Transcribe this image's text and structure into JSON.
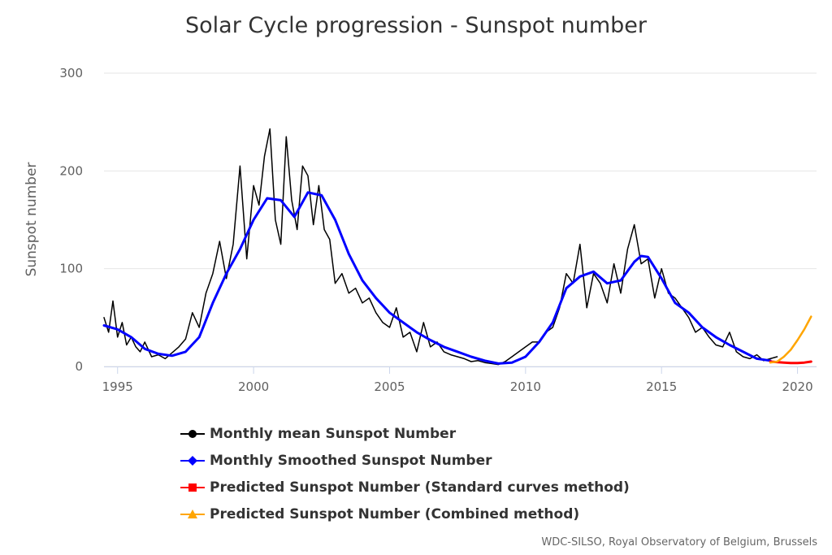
{
  "chart_data": {
    "type": "line",
    "title": "Solar Cycle progression - Sunspot number",
    "ylabel": "Sunspot number",
    "xlabel": "",
    "xlim": [
      1994.5,
      2020.7
    ],
    "ylim": [
      0,
      300
    ],
    "x_ticks": [
      1995,
      2000,
      2005,
      2010,
      2015,
      2020
    ],
    "y_ticks": [
      0,
      100,
      200,
      300
    ],
    "grid": "horizontal",
    "legend_position": "bottom",
    "credits": "WDC-SILSO, Royal Observatory of Belgium, Brussels",
    "series": [
      {
        "name": "Monthly mean Sunspot Number",
        "color": "#000000",
        "marker": "circle",
        "x": [
          1994.5,
          1994.67,
          1994.83,
          1995.0,
          1995.17,
          1995.33,
          1995.5,
          1995.67,
          1995.83,
          1996.0,
          1996.25,
          1996.5,
          1996.75,
          1997.0,
          1997.25,
          1997.5,
          1997.75,
          1998.0,
          1998.25,
          1998.5,
          1998.75,
          1999.0,
          1999.25,
          1999.5,
          1999.75,
          2000.0,
          2000.2,
          2000.4,
          2000.6,
          2000.8,
          2001.0,
          2001.2,
          2001.4,
          2001.6,
          2001.8,
          2002.0,
          2002.2,
          2002.4,
          2002.6,
          2002.8,
          2003.0,
          2003.25,
          2003.5,
          2003.75,
          2004.0,
          2004.25,
          2004.5,
          2004.75,
          2005.0,
          2005.25,
          2005.5,
          2005.75,
          2006.0,
          2006.25,
          2006.5,
          2006.75,
          2007.0,
          2007.25,
          2007.5,
          2007.75,
          2008.0,
          2008.25,
          2008.5,
          2008.75,
          2009.0,
          2009.25,
          2009.5,
          2009.75,
          2010.0,
          2010.25,
          2010.5,
          2010.75,
          2011.0,
          2011.25,
          2011.5,
          2011.75,
          2012.0,
          2012.25,
          2012.5,
          2012.75,
          2013.0,
          2013.25,
          2013.5,
          2013.75,
          2014.0,
          2014.25,
          2014.5,
          2014.75,
          2015.0,
          2015.25,
          2015.5,
          2015.75,
          2016.0,
          2016.25,
          2016.5,
          2016.75,
          2017.0,
          2017.25,
          2017.5,
          2017.75,
          2018.0,
          2018.25,
          2018.5,
          2018.75,
          2019.0,
          2019.25
        ],
        "values": [
          50,
          35,
          67,
          30,
          45,
          22,
          30,
          20,
          15,
          25,
          10,
          12,
          8,
          14,
          20,
          28,
          55,
          40,
          75,
          95,
          128,
          90,
          125,
          205,
          110,
          185,
          165,
          215,
          243,
          150,
          125,
          235,
          170,
          140,
          205,
          195,
          145,
          185,
          140,
          130,
          85,
          95,
          75,
          80,
          65,
          70,
          55,
          45,
          40,
          60,
          30,
          35,
          15,
          45,
          20,
          25,
          15,
          12,
          10,
          8,
          5,
          6,
          4,
          3,
          2,
          5,
          10,
          15,
          20,
          25,
          25,
          35,
          40,
          60,
          95,
          85,
          125,
          60,
          95,
          85,
          65,
          105,
          75,
          120,
          145,
          105,
          110,
          70,
          100,
          75,
          70,
          60,
          50,
          35,
          40,
          30,
          22,
          20,
          35,
          15,
          10,
          8,
          12,
          6,
          8,
          10
        ]
      },
      {
        "name": "Monthly Smoothed Sunspot Number",
        "color": "#0000ff",
        "marker": "diamond",
        "x": [
          1994.5,
          1995.0,
          1995.5,
          1996.0,
          1996.5,
          1997.0,
          1997.5,
          1998.0,
          1998.5,
          1999.0,
          1999.5,
          2000.0,
          2000.5,
          2001.0,
          2001.5,
          2002.0,
          2002.5,
          2003.0,
          2003.5,
          2004.0,
          2004.5,
          2005.0,
          2005.5,
          2006.0,
          2006.5,
          2007.0,
          2007.5,
          2008.0,
          2008.5,
          2009.0,
          2009.5,
          2010.0,
          2010.5,
          2011.0,
          2011.5,
          2012.0,
          2012.5,
          2013.0,
          2013.5,
          2014.0,
          2014.25,
          2014.5,
          2015.0,
          2015.5,
          2016.0,
          2016.5,
          2017.0,
          2017.5,
          2018.0,
          2018.5,
          2019.0
        ],
        "values": [
          42,
          38,
          30,
          18,
          13,
          11,
          15,
          30,
          65,
          95,
          120,
          150,
          172,
          170,
          153,
          178,
          175,
          150,
          115,
          88,
          70,
          55,
          45,
          35,
          27,
          20,
          15,
          10,
          6,
          3,
          4,
          10,
          25,
          45,
          80,
          92,
          97,
          85,
          88,
          107,
          113,
          112,
          90,
          65,
          55,
          40,
          30,
          22,
          15,
          8,
          6
        ]
      },
      {
        "name": "Predicted Sunspot Number (Standard curves method)",
        "color": "#ff0000",
        "marker": "square",
        "x": [
          2019.0,
          2019.25,
          2019.5,
          2019.75,
          2020.0,
          2020.25,
          2020.5
        ],
        "values": [
          5,
          4.5,
          4,
          3.5,
          3.5,
          4,
          5
        ]
      },
      {
        "name": "Predicted Sunspot Number (Combined method)",
        "color": "#ffa500",
        "marker": "triangle",
        "x": [
          2019.0,
          2019.25,
          2019.5,
          2019.75,
          2020.0,
          2020.25,
          2020.5
        ],
        "values": [
          4,
          5,
          10,
          17,
          27,
          38,
          51
        ]
      }
    ]
  }
}
